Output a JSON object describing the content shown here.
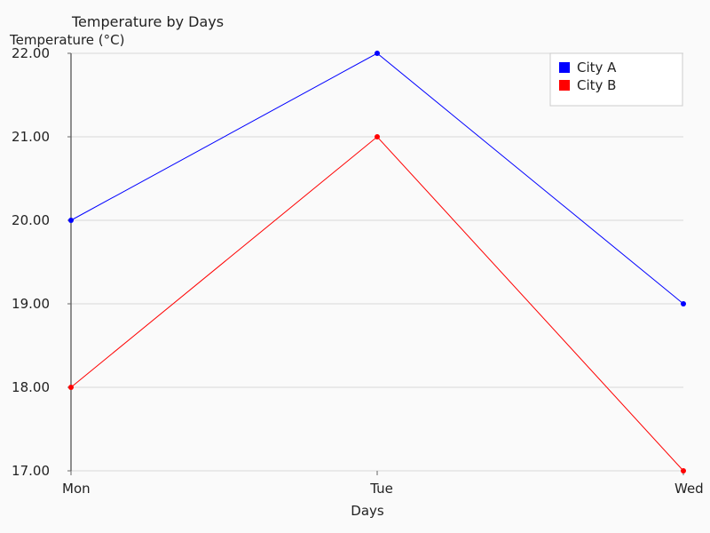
{
  "chart_data": {
    "type": "line",
    "title": "Temperature by Days",
    "xlabel": "Days",
    "ylabel": "Temperature (°C)",
    "categories": [
      "Mon",
      "Tue",
      "Wed"
    ],
    "series": [
      {
        "name": "City A",
        "values": [
          20,
          22,
          19
        ],
        "color": "#0000ff"
      },
      {
        "name": "City B",
        "values": [
          18,
          21,
          17
        ],
        "color": "#ff0000"
      }
    ],
    "ylim": [
      17,
      22
    ],
    "yticks": [
      "17.00",
      "18.00",
      "19.00",
      "20.00",
      "21.00",
      "22.00"
    ],
    "grid": true,
    "legend_position": "top-right"
  }
}
